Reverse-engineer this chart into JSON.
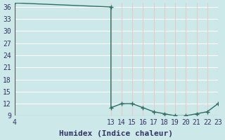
{
  "xlabel": "Humidex (Indice chaleur)",
  "background_color": "#cce8e8",
  "grid_color_h": "#ffffff",
  "grid_color_v": "#e8c8c8",
  "line_color": "#2e6e62",
  "marker_color": "#2e6e62",
  "x_data": [
    4,
    13,
    13,
    14,
    15,
    16,
    17,
    18,
    19,
    20,
    21,
    22,
    23
  ],
  "y_data": [
    37,
    36,
    11,
    12,
    12,
    11,
    10,
    9.5,
    9,
    9,
    9.5,
    10,
    12
  ],
  "xlim": [
    4,
    23
  ],
  "ylim": [
    9,
    37
  ],
  "xticks": [
    4,
    13,
    14,
    15,
    16,
    17,
    18,
    19,
    20,
    21,
    22,
    23
  ],
  "yticks": [
    9,
    12,
    15,
    18,
    21,
    24,
    27,
    30,
    33,
    36
  ],
  "marker_indices": [
    0,
    1,
    2,
    3,
    4,
    5,
    6,
    7,
    8,
    9,
    10,
    11,
    12
  ],
  "font_color": "#333366",
  "xlabel_fontsize": 8,
  "tick_fontsize": 7
}
